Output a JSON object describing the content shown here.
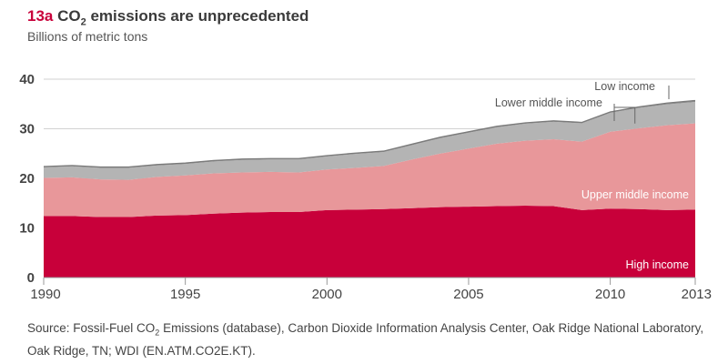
{
  "header": {
    "figure_number": "13a",
    "title_prefix": "CO",
    "title_subscript": "2",
    "title_suffix": " emissions are unprecedented",
    "subtitle": "Billions of metric tons"
  },
  "chart_data": {
    "type": "area",
    "stacked": true,
    "title": "13a CO2 emissions are unprecedented",
    "ylabel": "Billions of metric tons",
    "xlabel": "",
    "x": [
      1990,
      1991,
      1992,
      1993,
      1994,
      1995,
      1996,
      1997,
      1998,
      1999,
      2000,
      2001,
      2002,
      2003,
      2004,
      2005,
      2006,
      2007,
      2008,
      2009,
      2010,
      2011,
      2012,
      2013
    ],
    "xlim": [
      1990,
      2013
    ],
    "ylim": [
      0,
      40
    ],
    "x_ticks": [
      "1990",
      "1995",
      "2000",
      "2005",
      "2010",
      "2013"
    ],
    "x_tick_values": [
      1990,
      1995,
      2000,
      2005,
      2010,
      2013
    ],
    "y_ticks": [
      "0",
      "10",
      "20",
      "30",
      "40"
    ],
    "y_tick_values": [
      0,
      10,
      20,
      30,
      40
    ],
    "grid": true,
    "series": [
      {
        "name": "High income",
        "color": "#c8003a",
        "values": [
          12.4,
          12.4,
          12.2,
          12.2,
          12.5,
          12.6,
          12.9,
          13.1,
          13.2,
          13.2,
          13.6,
          13.7,
          13.8,
          14.0,
          14.2,
          14.3,
          14.4,
          14.5,
          14.4,
          13.6,
          13.9,
          13.8,
          13.6,
          13.7
        ]
      },
      {
        "name": "Upper middle income",
        "color": "#e8979a",
        "values": [
          7.7,
          7.8,
          7.6,
          7.5,
          7.8,
          8.0,
          8.1,
          8.1,
          8.1,
          8.0,
          8.2,
          8.4,
          8.7,
          9.8,
          10.8,
          11.7,
          12.6,
          13.1,
          13.5,
          13.8,
          15.5,
          16.3,
          17.1,
          17.4
        ]
      },
      {
        "name": "Lower middle income",
        "color": "#b4b4b4",
        "values": [
          2.1,
          2.2,
          2.3,
          2.4,
          2.3,
          2.3,
          2.4,
          2.5,
          2.5,
          2.6,
          2.6,
          2.8,
          2.8,
          2.9,
          3.1,
          3.2,
          3.3,
          3.4,
          3.5,
          3.7,
          3.8,
          4.1,
          4.2,
          4.3
        ]
      },
      {
        "name": "Low income",
        "color": "#8c8c8c",
        "values": [
          0.2,
          0.2,
          0.2,
          0.2,
          0.2,
          0.2,
          0.2,
          0.2,
          0.2,
          0.2,
          0.2,
          0.2,
          0.2,
          0.2,
          0.2,
          0.2,
          0.2,
          0.2,
          0.2,
          0.2,
          0.2,
          0.2,
          0.3,
          0.3
        ]
      }
    ],
    "annotations": [
      {
        "text": "High income",
        "series": "High income",
        "placement": "inside-bottom-right"
      },
      {
        "text": "Upper middle income",
        "series": "Upper middle income",
        "placement": "inside-right"
      },
      {
        "text": "Lower middle income",
        "series": "Lower middle income",
        "placement": "callout-above"
      },
      {
        "text": "Low income",
        "series": "Low income",
        "placement": "callout-above-right"
      }
    ]
  },
  "source": {
    "prefix": "Source: Fossil-Fuel CO",
    "subscript": "2",
    "suffix": " Emissions (database), Carbon Dioxide Information Analysis Center, Oak Ridge National Laboratory, Oak Ridge, TN; WDI (EN.ATM.CO2E.KT)."
  }
}
